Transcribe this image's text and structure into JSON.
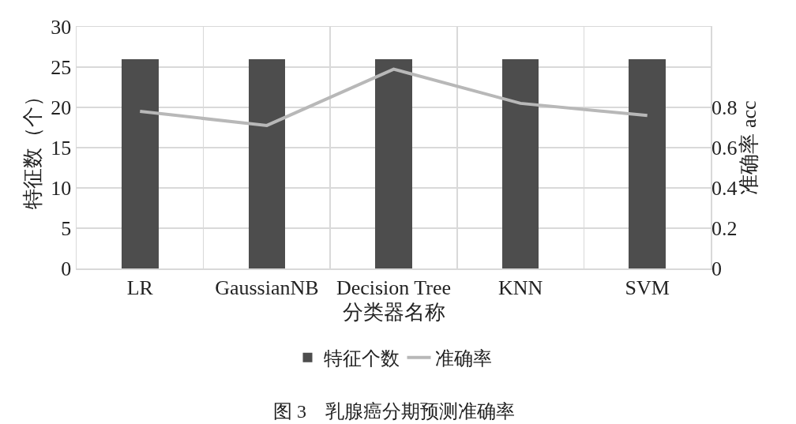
{
  "chart_data": {
    "type": "bar",
    "xlabel": "分类器名称",
    "ylabel": "特征数（个）",
    "y2label": "准确率 acc",
    "annotations": [
      "图 3　乳腺癌分期预测准确率"
    ],
    "categories": [
      "LR",
      "GaussianNB",
      "Decision Tree",
      "KNN",
      "SVM"
    ],
    "series": [
      {
        "name": "特征个数",
        "color": "#4d4d4d",
        "values": [
          26,
          26,
          26,
          26,
          26
        ]
      },
      {
        "name": "准确率",
        "type": "line",
        "axis": "y2",
        "color": "#b8b8b8",
        "values": [
          0.78,
          0.71,
          0.99,
          0.82,
          0.76
        ]
      }
    ],
    "ylim": [
      0,
      30
    ],
    "yticks": [
      0,
      5,
      10,
      15,
      20,
      25,
      30
    ],
    "y2lim": [
      0,
      1.2
    ],
    "y2ticks": [
      0,
      0.2,
      0.4,
      0.6,
      0.8
    ],
    "grid": true,
    "legend": "bottom",
    "line_style": "solid"
  }
}
